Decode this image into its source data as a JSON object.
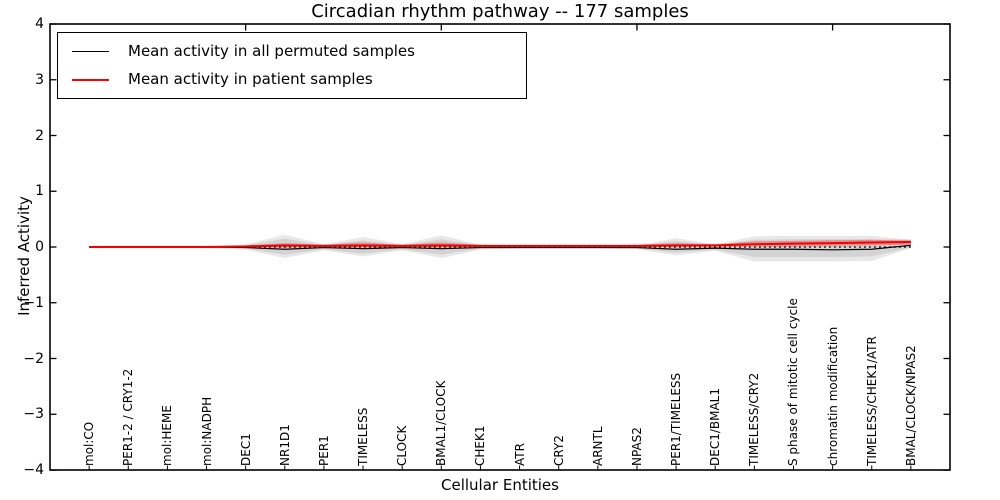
{
  "figure": {
    "title": "Circadian rhythm pathway -- 177 samples",
    "xlabel": "Cellular Entities",
    "ylabel": "Inferred Activity"
  },
  "legend": {
    "position": "upper left",
    "entries": [
      {
        "label": "Mean activity in all permuted samples",
        "color": "#000000",
        "line_width": 1.5
      },
      {
        "label": "Mean activity in patient samples",
        "color": "#ff0000",
        "line_width": 2
      }
    ]
  },
  "chart_data": {
    "type": "line",
    "title": "Circadian rhythm pathway -- 177 samples",
    "xlabel": "Cellular Entities",
    "ylabel": "Inferred Activity",
    "ylim": [
      -4,
      4
    ],
    "yticks": [
      4,
      3,
      2,
      1,
      0,
      -1,
      -2,
      -3,
      -4
    ],
    "grid": false,
    "legend_position": "upper left",
    "categories": [
      "mol:CO",
      "PER1-2 / CRY1-2",
      "mol:HEME",
      "mol:NADPH",
      "DEC1",
      "NR1D1",
      "PER1",
      "TIMELESS",
      "CLOCK",
      "BMAL1/CLOCK",
      "CHEK1",
      "ATR",
      "CRY2",
      "ARNTL",
      "NPAS2",
      "PER1/TIMELESS",
      "DEC1/BMAL1",
      "TIMELESS/CRY2",
      "S phase of mitotic cell cycle",
      "chromatin modification",
      "TIMELESS/CHEK1/ATR",
      "BMAL/CLOCK/NPAS2"
    ],
    "series": [
      {
        "name": "Mean activity in all permuted samples",
        "color": "#000000",
        "width": 1.2,
        "values": [
          0.0,
          0.0,
          0.0,
          0.0,
          -0.01,
          -0.04,
          -0.01,
          -0.03,
          -0.01,
          -0.03,
          -0.01,
          -0.01,
          -0.01,
          -0.01,
          -0.01,
          -0.04,
          -0.02,
          -0.04,
          -0.04,
          -0.05,
          -0.04,
          0.03
        ]
      },
      {
        "name": "Mean activity in patient samples",
        "color": "#f40000",
        "width": 2.0,
        "values": [
          0.0,
          0.0,
          0.0,
          0.0,
          0.01,
          0.03,
          0.02,
          0.03,
          0.02,
          0.03,
          0.02,
          0.02,
          0.02,
          0.02,
          0.02,
          0.03,
          0.03,
          0.05,
          0.06,
          0.07,
          0.08,
          0.09
        ]
      }
    ],
    "bands": [
      {
        "name": "permuted-range-band",
        "color": "rgba(0,0,0,0.09)",
        "upper": [
          0.02,
          0.02,
          0.02,
          0.02,
          0.05,
          0.22,
          0.05,
          0.18,
          0.05,
          0.21,
          0.04,
          0.03,
          0.02,
          0.02,
          0.03,
          0.16,
          0.05,
          0.19,
          0.2,
          0.2,
          0.2,
          0.13
        ],
        "lower": [
          -0.02,
          -0.02,
          -0.02,
          -0.02,
          -0.05,
          -0.2,
          -0.06,
          -0.17,
          -0.06,
          -0.2,
          -0.05,
          -0.03,
          -0.03,
          -0.03,
          -0.04,
          -0.15,
          -0.07,
          -0.26,
          -0.26,
          -0.26,
          -0.25,
          -0.02
        ]
      },
      {
        "name": "permuted-std-band",
        "color": "rgba(0,0,0,0.09)",
        "upper": [
          0.01,
          0.01,
          0.01,
          0.01,
          0.03,
          0.15,
          0.03,
          0.12,
          0.03,
          0.14,
          0.03,
          0.02,
          0.01,
          0.01,
          0.02,
          0.11,
          0.03,
          0.13,
          0.14,
          0.14,
          0.14,
          0.09
        ],
        "lower": [
          -0.01,
          -0.01,
          -0.01,
          -0.01,
          -0.03,
          -0.14,
          -0.04,
          -0.12,
          -0.04,
          -0.14,
          -0.03,
          -0.02,
          -0.02,
          -0.02,
          -0.03,
          -0.1,
          -0.05,
          -0.18,
          -0.18,
          -0.18,
          -0.17,
          -0.01
        ]
      },
      {
        "name": "patient-std-band",
        "color": "rgba(255,0,0,0.32)",
        "upper": [
          0.01,
          0.01,
          0.01,
          0.01,
          0.03,
          0.07,
          0.04,
          0.08,
          0.04,
          0.08,
          0.04,
          0.03,
          0.03,
          0.03,
          0.04,
          0.07,
          0.05,
          0.1,
          0.11,
          0.12,
          0.13,
          0.13
        ],
        "lower": [
          -0.01,
          -0.01,
          -0.01,
          -0.01,
          0.0,
          -0.01,
          0.0,
          -0.01,
          0.0,
          -0.01,
          0.0,
          0.0,
          0.0,
          0.0,
          0.0,
          0.0,
          0.01,
          0.01,
          0.01,
          0.02,
          0.03,
          0.04
        ]
      }
    ],
    "zero_line": {
      "y": 0,
      "style": "dotted",
      "color": "#000000"
    },
    "top_tick_category_indexes": [
      4,
      9,
      14,
      19
    ],
    "axis_color": "#000000",
    "background_color": "#ffffff"
  }
}
